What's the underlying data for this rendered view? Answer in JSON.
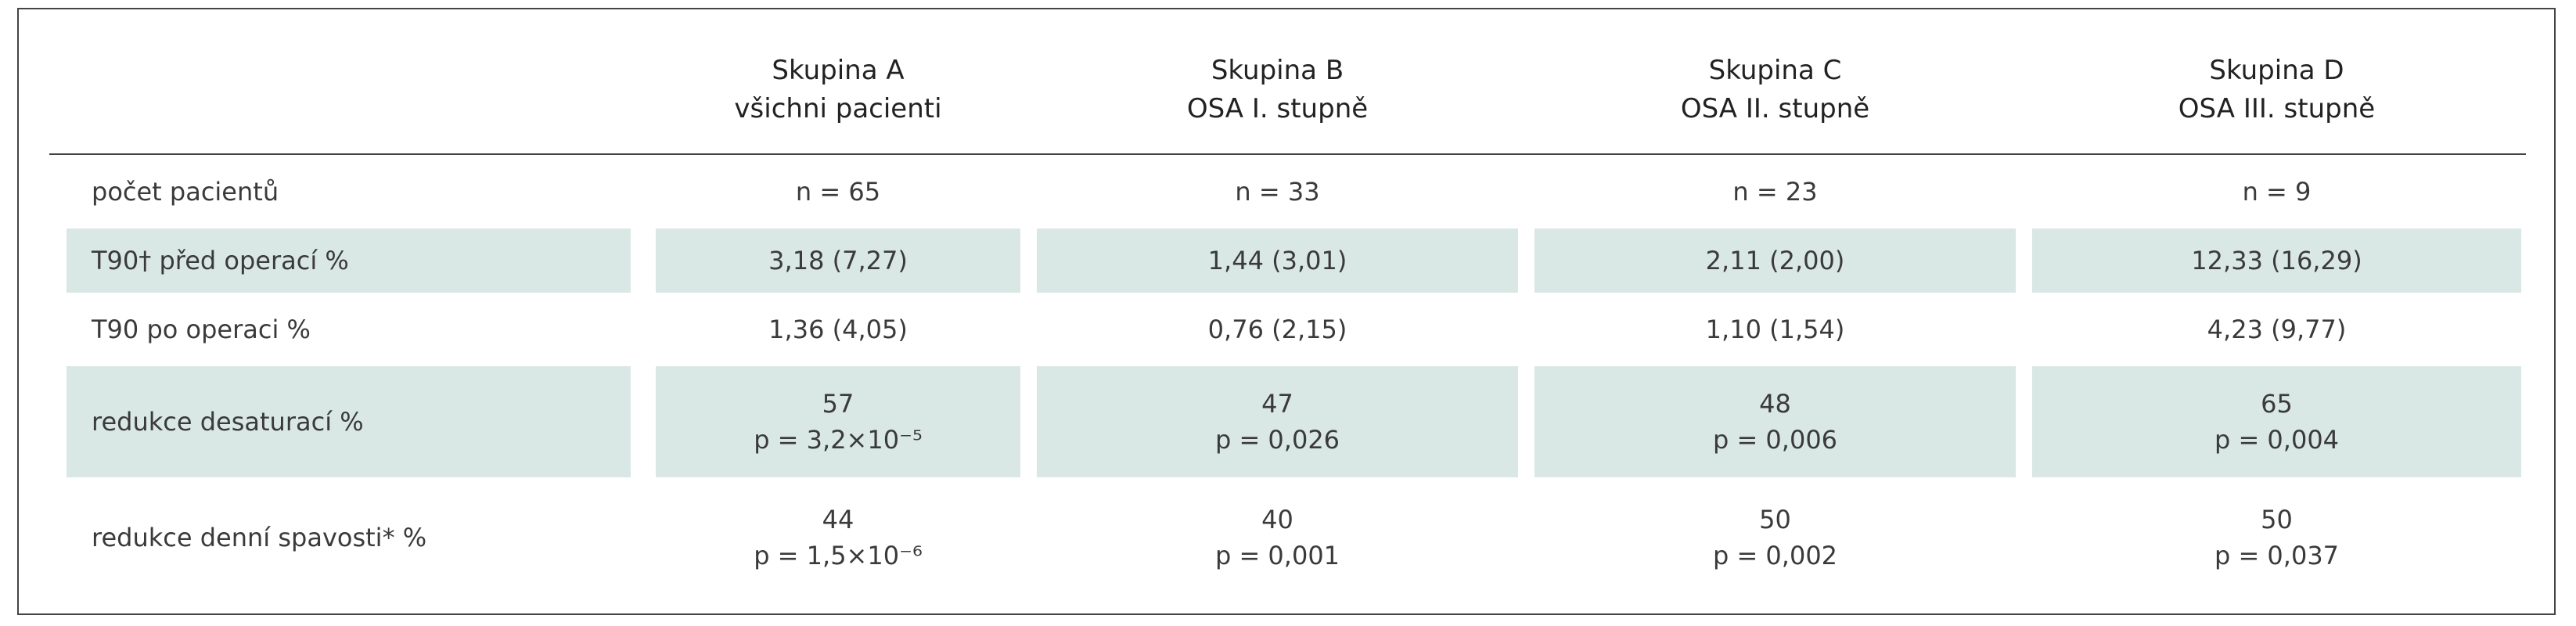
{
  "table": {
    "columns": [
      {
        "title": "Skupina A",
        "subtitle": "všichni pacienti"
      },
      {
        "title": "Skupina B",
        "subtitle": "OSA I. stupně"
      },
      {
        "title": "Skupina C",
        "subtitle": "OSA II. stupně"
      },
      {
        "title": "Skupina D",
        "subtitle": "OSA III. stupně"
      }
    ],
    "rows": [
      {
        "label": "počet pacientů",
        "shaded": false,
        "cells": [
          [
            "n = 65"
          ],
          [
            "n = 33"
          ],
          [
            "n = 23"
          ],
          [
            "n = 9"
          ]
        ]
      },
      {
        "label": "T90† před operací %",
        "shaded": true,
        "cells": [
          [
            "3,18 (7,27)"
          ],
          [
            "1,44 (3,01)"
          ],
          [
            "2,11 (2,00)"
          ],
          [
            "12,33 (16,29)"
          ]
        ]
      },
      {
        "label": "T90 po operaci %",
        "shaded": false,
        "cells": [
          [
            "1,36 (4,05)"
          ],
          [
            "0,76 (2,15)"
          ],
          [
            "1,10 (1,54)"
          ],
          [
            "4,23 (9,77)"
          ]
        ]
      },
      {
        "label": "redukce desaturací %",
        "shaded": true,
        "cells": [
          [
            "57",
            "p = 3,2×10⁻⁵"
          ],
          [
            "47",
            "p = 0,026"
          ],
          [
            "48",
            "p = 0,006"
          ],
          [
            "65",
            "p = 0,004"
          ]
        ]
      },
      {
        "label": "redukce denní spavosti* %",
        "shaded": false,
        "cells": [
          [
            "44",
            "p = 1,5×10⁻⁶"
          ],
          [
            "40",
            "p = 0,001"
          ],
          [
            "50",
            "p = 0,002"
          ],
          [
            "50",
            "p = 0,037"
          ]
        ]
      }
    ]
  }
}
